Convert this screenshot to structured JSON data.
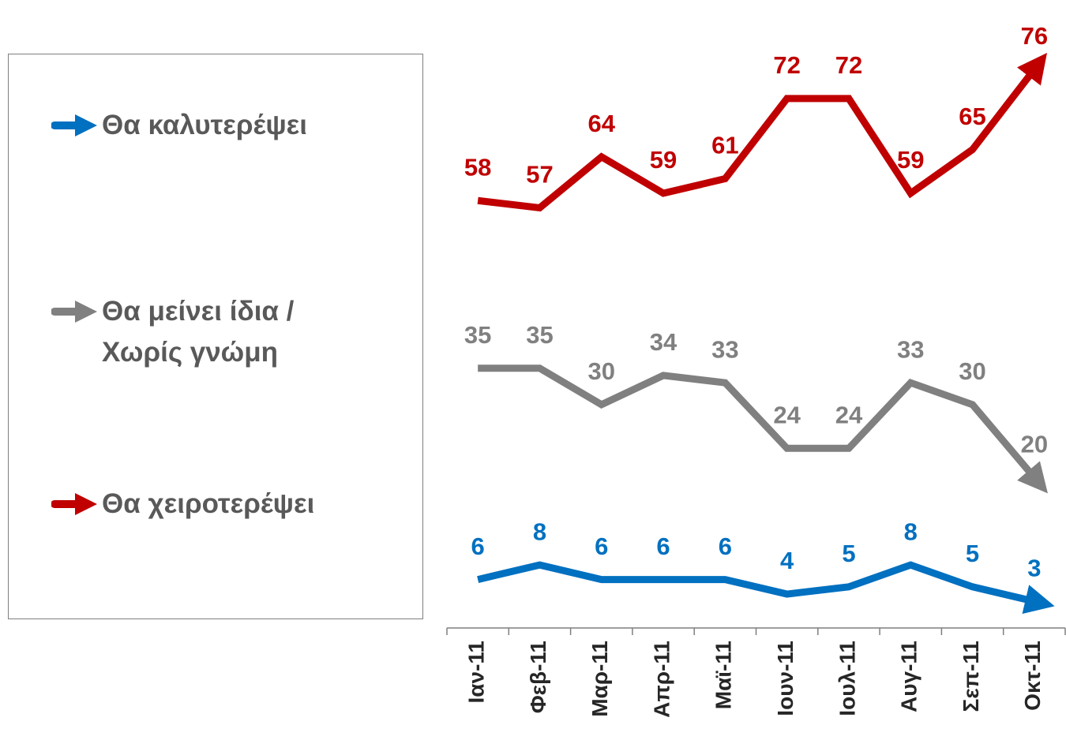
{
  "chart_data": {
    "type": "line",
    "categories": [
      "Ιαν-11",
      "Φεβ-11",
      "Μαρ-11",
      "Απρ-11",
      "Μαϊ-11",
      "Ιουν-11",
      "Ιουλ-11",
      "Αυγ-11",
      "Σεπ-11",
      "Οκτ-11"
    ],
    "series": [
      {
        "name": "Θα καλυτερέψει",
        "color": "#0070c0",
        "values": [
          6,
          8,
          6,
          6,
          6,
          4,
          5,
          8,
          5,
          3
        ]
      },
      {
        "name": "Θα μείνει ίδια / Χωρίς γνώμη",
        "color": "#808080",
        "values": [
          35,
          35,
          30,
          34,
          33,
          24,
          24,
          33,
          30,
          20
        ]
      },
      {
        "name": "Θα χειροτερέψει",
        "color": "#c00000",
        "values": [
          58,
          57,
          64,
          59,
          61,
          72,
          72,
          59,
          65,
          76
        ]
      }
    ],
    "ylim": [
      0,
      80
    ]
  }
}
